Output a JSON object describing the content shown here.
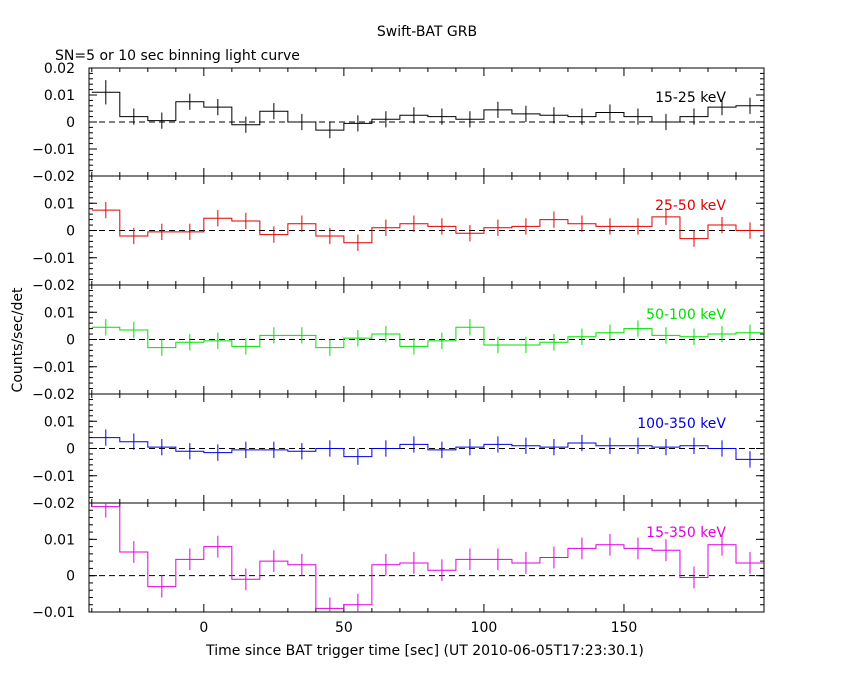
{
  "chart_data": {
    "type": "step",
    "title": "Swift-BAT GRB",
    "subtitle": "SN=5 or 10 sec binning light curve",
    "xlabel": "Time since BAT trigger time [sec] (UT 2010-06-05T17:23:30.1)",
    "ylabel": "Counts/sec/det",
    "xlim": [
      -41,
      200
    ],
    "x_ticks": [
      0,
      50,
      100,
      150
    ],
    "bin_edges": [
      -40,
      -30,
      -20,
      -10,
      0,
      10,
      20,
      30,
      40,
      50,
      60,
      70,
      80,
      90,
      100,
      110,
      120,
      130,
      140,
      150,
      160,
      170,
      180,
      190,
      200
    ],
    "panels": [
      {
        "name": "15-25 keV",
        "color": "#000000",
        "ylim": [
          -0.02,
          0.02
        ],
        "y_ticks": [
          -0.02,
          -0.01,
          0,
          0.01,
          0.02
        ],
        "y_tick_labels": [
          "−0.02",
          "−0.01",
          "0",
          "0.01",
          "0.02"
        ],
        "values": [
          0.011,
          0.002,
          0.0005,
          0.0075,
          0.0055,
          -0.001,
          0.004,
          0.0,
          -0.003,
          -0.0005,
          0.001,
          0.0025,
          0.002,
          0.001,
          0.0045,
          0.003,
          0.0025,
          0.002,
          0.0035,
          0.002,
          0.0,
          0.002,
          0.0055,
          0.006
        ],
        "errors": [
          0.0045,
          0.003,
          0.003,
          0.003,
          0.003,
          0.003,
          0.003,
          0.003,
          0.003,
          0.003,
          0.003,
          0.003,
          0.003,
          0.003,
          0.003,
          0.003,
          0.003,
          0.003,
          0.003,
          0.003,
          0.003,
          0.003,
          0.003,
          0.003
        ]
      },
      {
        "name": "25-50 keV",
        "color": "#e00000",
        "ylim": [
          -0.02,
          0.02
        ],
        "y_ticks": [
          -0.02,
          -0.01,
          0,
          0.01
        ],
        "y_tick_labels": [
          "−0.02",
          "−0.01",
          "0",
          "0.01"
        ],
        "values": [
          0.0075,
          -0.002,
          -0.0005,
          -0.0005,
          0.0045,
          0.0035,
          -0.0015,
          0.0025,
          -0.002,
          -0.0045,
          0.001,
          0.0025,
          0.0015,
          -0.001,
          0.001,
          0.0015,
          0.004,
          0.0025,
          0.0015,
          0.0015,
          0.005,
          -0.003,
          0.002,
          0.0
        ]
      },
      {
        "name": "50-100 keV",
        "color": "#00e000",
        "ylim": [
          -0.02,
          0.02
        ],
        "y_ticks": [
          -0.02,
          -0.01,
          0,
          0.01
        ],
        "y_tick_labels": [
          "−0.02",
          "−0.01",
          "0",
          "0.01"
        ],
        "values": [
          0.0045,
          0.0035,
          -0.003,
          -0.001,
          -0.0005,
          -0.0025,
          0.0015,
          0.0015,
          -0.003,
          0.0005,
          0.002,
          -0.0025,
          -0.0005,
          0.0045,
          -0.002,
          -0.002,
          -0.001,
          0.001,
          0.0025,
          0.004,
          0.0015,
          0.001,
          0.002,
          0.0025
        ]
      },
      {
        "name": "100-350 keV",
        "color": "#0000e0",
        "ylim": [
          -0.02,
          0.02
        ],
        "y_ticks": [
          -0.02,
          -0.01,
          0,
          0.01
        ],
        "y_tick_labels": [
          "−0.02",
          "−0.01",
          "0",
          "0.01"
        ],
        "values": [
          0.004,
          0.0025,
          0.0005,
          -0.001,
          -0.0015,
          -0.0005,
          -0.0005,
          -0.001,
          0.0,
          -0.003,
          0.0,
          0.0015,
          -0.0005,
          0.0005,
          0.0015,
          0.001,
          0.0005,
          0.002,
          0.001,
          0.001,
          0.0005,
          0.001,
          0.0,
          -0.004
        ]
      },
      {
        "name": "15-350 keV",
        "color": "#e000e0",
        "ylim": [
          -0.01,
          0.02
        ],
        "y_ticks": [
          -0.02,
          -0.01,
          0,
          0.01
        ],
        "y_tick_labels": [
          "−0.02",
          "−0.01",
          "0",
          "0.01"
        ],
        "values": [
          0.019,
          0.0065,
          -0.003,
          0.0045,
          0.008,
          -0.001,
          0.004,
          0.003,
          -0.009,
          -0.008,
          0.003,
          0.0035,
          0.0015,
          0.0045,
          0.0045,
          0.0035,
          0.005,
          0.0075,
          0.0085,
          0.0075,
          0.007,
          -0.0005,
          0.0085,
          0.0035
        ]
      }
    ]
  }
}
